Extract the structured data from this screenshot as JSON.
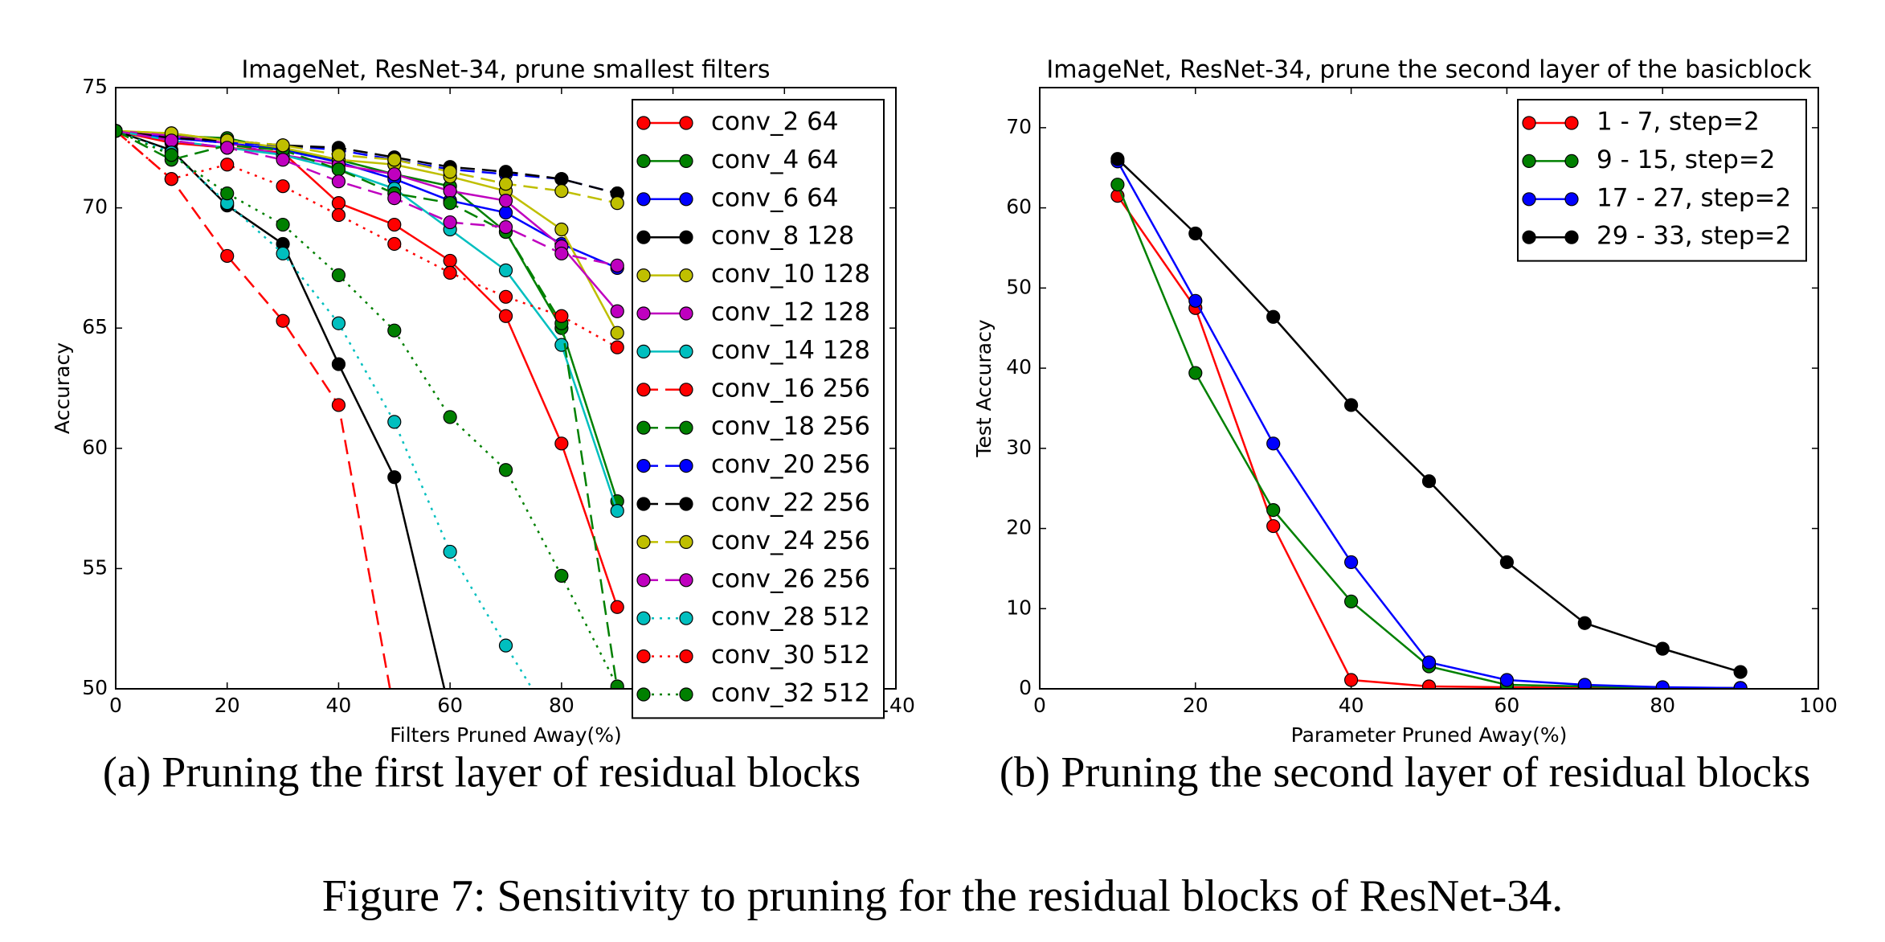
{
  "chart_data": [
    {
      "type": "line",
      "title": "ImageNet, ResNet-34, prune smallest filters",
      "xlabel": "Filters Pruned Away(%)",
      "ylabel": "Accuracy",
      "caption": "(a) Pruning the first layer of residual blocks",
      "x": [
        0,
        10,
        20,
        30,
        40,
        50,
        60,
        70,
        80,
        90
      ],
      "xlim": [
        0,
        140
      ],
      "xticks": [
        0,
        20,
        40,
        60,
        80,
        100,
        120,
        140
      ],
      "ylim": [
        50,
        75
      ],
      "yticks": [
        50,
        55,
        60,
        65,
        70,
        75
      ],
      "legend": "upper right",
      "series": [
        {
          "name": "conv_2 64",
          "color": "#ff0000",
          "style": "solid",
          "values": [
            73.2,
            72.7,
            72.5,
            72.3,
            70.2,
            69.3,
            67.8,
            65.5,
            60.2,
            53.4
          ]
        },
        {
          "name": "conv_4 64",
          "color": "#008000",
          "style": "solid",
          "values": [
            73.2,
            73.0,
            72.9,
            72.4,
            72.0,
            71.4,
            70.9,
            69.0,
            65.0,
            57.8
          ]
        },
        {
          "name": "conv_6 64",
          "color": "#0000ff",
          "style": "solid",
          "values": [
            73.2,
            72.9,
            72.7,
            72.4,
            71.9,
            71.2,
            70.3,
            69.8,
            68.5,
            67.5
          ]
        },
        {
          "name": "conv_8 128",
          "color": "#000000",
          "style": "solid",
          "values": [
            73.2,
            72.4,
            70.1,
            68.5,
            63.5,
            58.8,
            49.0,
            null,
            null,
            null
          ]
        },
        {
          "name": "conv_10 128",
          "color": "#bfbf00",
          "style": "solid",
          "values": [
            73.2,
            73.1,
            72.8,
            72.5,
            72.0,
            71.8,
            71.3,
            70.7,
            69.1,
            64.8
          ]
        },
        {
          "name": "conv_12 128",
          "color": "#bf00bf",
          "style": "solid",
          "values": [
            73.2,
            73.0,
            72.7,
            72.2,
            71.8,
            71.4,
            70.7,
            70.3,
            68.4,
            65.7
          ]
        },
        {
          "name": "conv_14 128",
          "color": "#00bfbf",
          "style": "solid",
          "values": [
            73.2,
            72.8,
            72.5,
            72.2,
            71.6,
            70.8,
            69.1,
            67.4,
            64.3,
            57.4
          ]
        },
        {
          "name": "conv_16 256",
          "color": "#ff0000",
          "style": "dashed",
          "values": [
            73.2,
            71.2,
            68.0,
            65.3,
            61.8,
            49.0,
            null,
            null,
            null,
            null
          ]
        },
        {
          "name": "conv_18 256",
          "color": "#008000",
          "style": "dashed",
          "values": [
            73.2,
            72.0,
            72.6,
            72.4,
            71.6,
            70.6,
            70.2,
            69.0,
            65.2,
            50.0
          ]
        },
        {
          "name": "conv_20 256",
          "color": "#0000ff",
          "style": "dashed",
          "values": [
            73.2,
            72.9,
            72.7,
            72.6,
            72.4,
            72.0,
            71.6,
            71.4,
            71.2,
            70.6
          ]
        },
        {
          "name": "conv_22 256",
          "color": "#000000",
          "style": "dashed",
          "values": [
            73.2,
            72.9,
            72.8,
            72.6,
            72.5,
            72.1,
            71.7,
            71.5,
            71.2,
            70.6
          ]
        },
        {
          "name": "conv_24 256",
          "color": "#bfbf00",
          "style": "dashed",
          "values": [
            73.2,
            73.1,
            72.8,
            72.6,
            72.2,
            72.0,
            71.5,
            71.0,
            70.7,
            70.2
          ]
        },
        {
          "name": "conv_26 256",
          "color": "#bf00bf",
          "style": "dashed",
          "values": [
            73.2,
            72.8,
            72.5,
            72.0,
            71.1,
            70.4,
            69.4,
            69.2,
            68.1,
            67.6
          ]
        },
        {
          "name": "conv_28 512",
          "color": "#00bfbf",
          "style": "dotted",
          "values": [
            73.2,
            72.3,
            70.2,
            68.1,
            65.2,
            61.1,
            55.7,
            51.8,
            48.0,
            null
          ]
        },
        {
          "name": "conv_30 512",
          "color": "#ff0000",
          "style": "dotted",
          "values": [
            73.2,
            71.2,
            71.8,
            70.9,
            69.7,
            68.5,
            67.3,
            66.3,
            65.5,
            64.2
          ]
        },
        {
          "name": "conv_32 512",
          "color": "#008000",
          "style": "dotted",
          "values": [
            73.2,
            72.2,
            70.6,
            69.3,
            67.2,
            64.9,
            61.3,
            59.1,
            54.7,
            50.1
          ]
        }
      ]
    },
    {
      "type": "line",
      "title": "ImageNet, ResNet-34, prune the second layer of the basicblock",
      "xlabel": "Parameter Pruned Away(%)",
      "ylabel": "Test Accuracy",
      "caption": "(b) Pruning the second layer of residual blocks",
      "x": [
        10,
        20,
        30,
        40,
        50,
        60,
        70,
        80,
        90
      ],
      "xlim": [
        0,
        100
      ],
      "xticks": [
        0,
        20,
        40,
        60,
        80,
        100
      ],
      "ylim": [
        0,
        75
      ],
      "yticks": [
        0,
        10,
        20,
        30,
        40,
        50,
        60,
        70
      ],
      "legend": "upper right",
      "series": [
        {
          "name": "1 - 7, step=2",
          "color": "#ff0000",
          "style": "solid",
          "values": [
            61.5,
            47.5,
            20.3,
            1.1,
            0.3,
            0.2,
            0.1,
            0.1,
            0.1
          ]
        },
        {
          "name": "9 - 15, step=2",
          "color": "#008000",
          "style": "solid",
          "values": [
            62.9,
            39.4,
            22.3,
            10.9,
            2.8,
            0.5,
            0.3,
            0.1,
            0.1
          ]
        },
        {
          "name": "17 - 27, step=2",
          "color": "#0000ff",
          "style": "solid",
          "values": [
            65.8,
            48.4,
            30.6,
            15.8,
            3.3,
            1.1,
            0.5,
            0.2,
            0.1
          ]
        },
        {
          "name": "29 - 33, step=2",
          "color": "#000000",
          "style": "solid",
          "values": [
            66.1,
            56.8,
            46.4,
            35.4,
            25.9,
            15.8,
            8.2,
            5.0,
            2.1
          ]
        }
      ]
    }
  ],
  "figure_caption": "Figure 7: Sensitivity to pruning for the residual blocks of ResNet-34."
}
